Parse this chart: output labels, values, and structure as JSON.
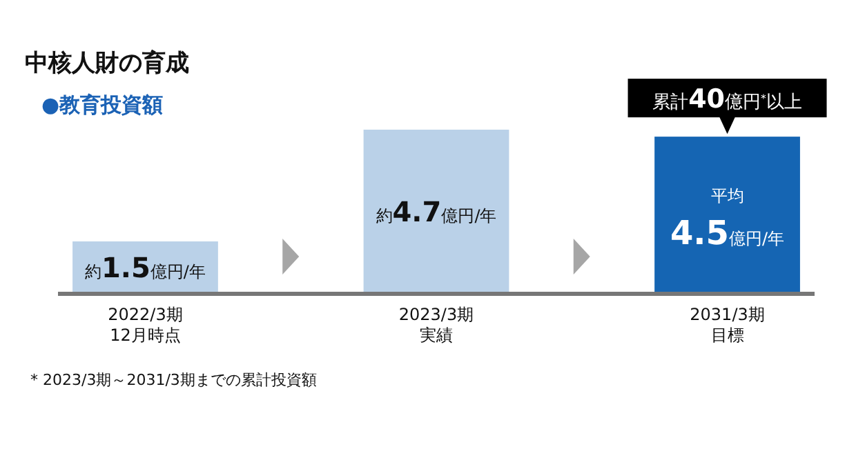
{
  "chart_data": {
    "type": "bar",
    "title": "中核人財の育成",
    "subtitle": "●教育投資額",
    "categories": [
      "2022/3期12月時点",
      "2023/3期実績",
      "2031/3期目標"
    ],
    "values": [
      1.5,
      4.7,
      4.5
    ],
    "colors": [
      "#bad1e8",
      "#bad1e8",
      "#1565b3"
    ],
    "value_labels": [
      "約1.5億円/年",
      "約4.7億円/年",
      "平均\n4.5億円/年"
    ],
    "annotations": [
      "累計40億円$^{*}$以上",
      "* 2023/3期～2031/3期までの累計投資額"
    ]
  }
}
